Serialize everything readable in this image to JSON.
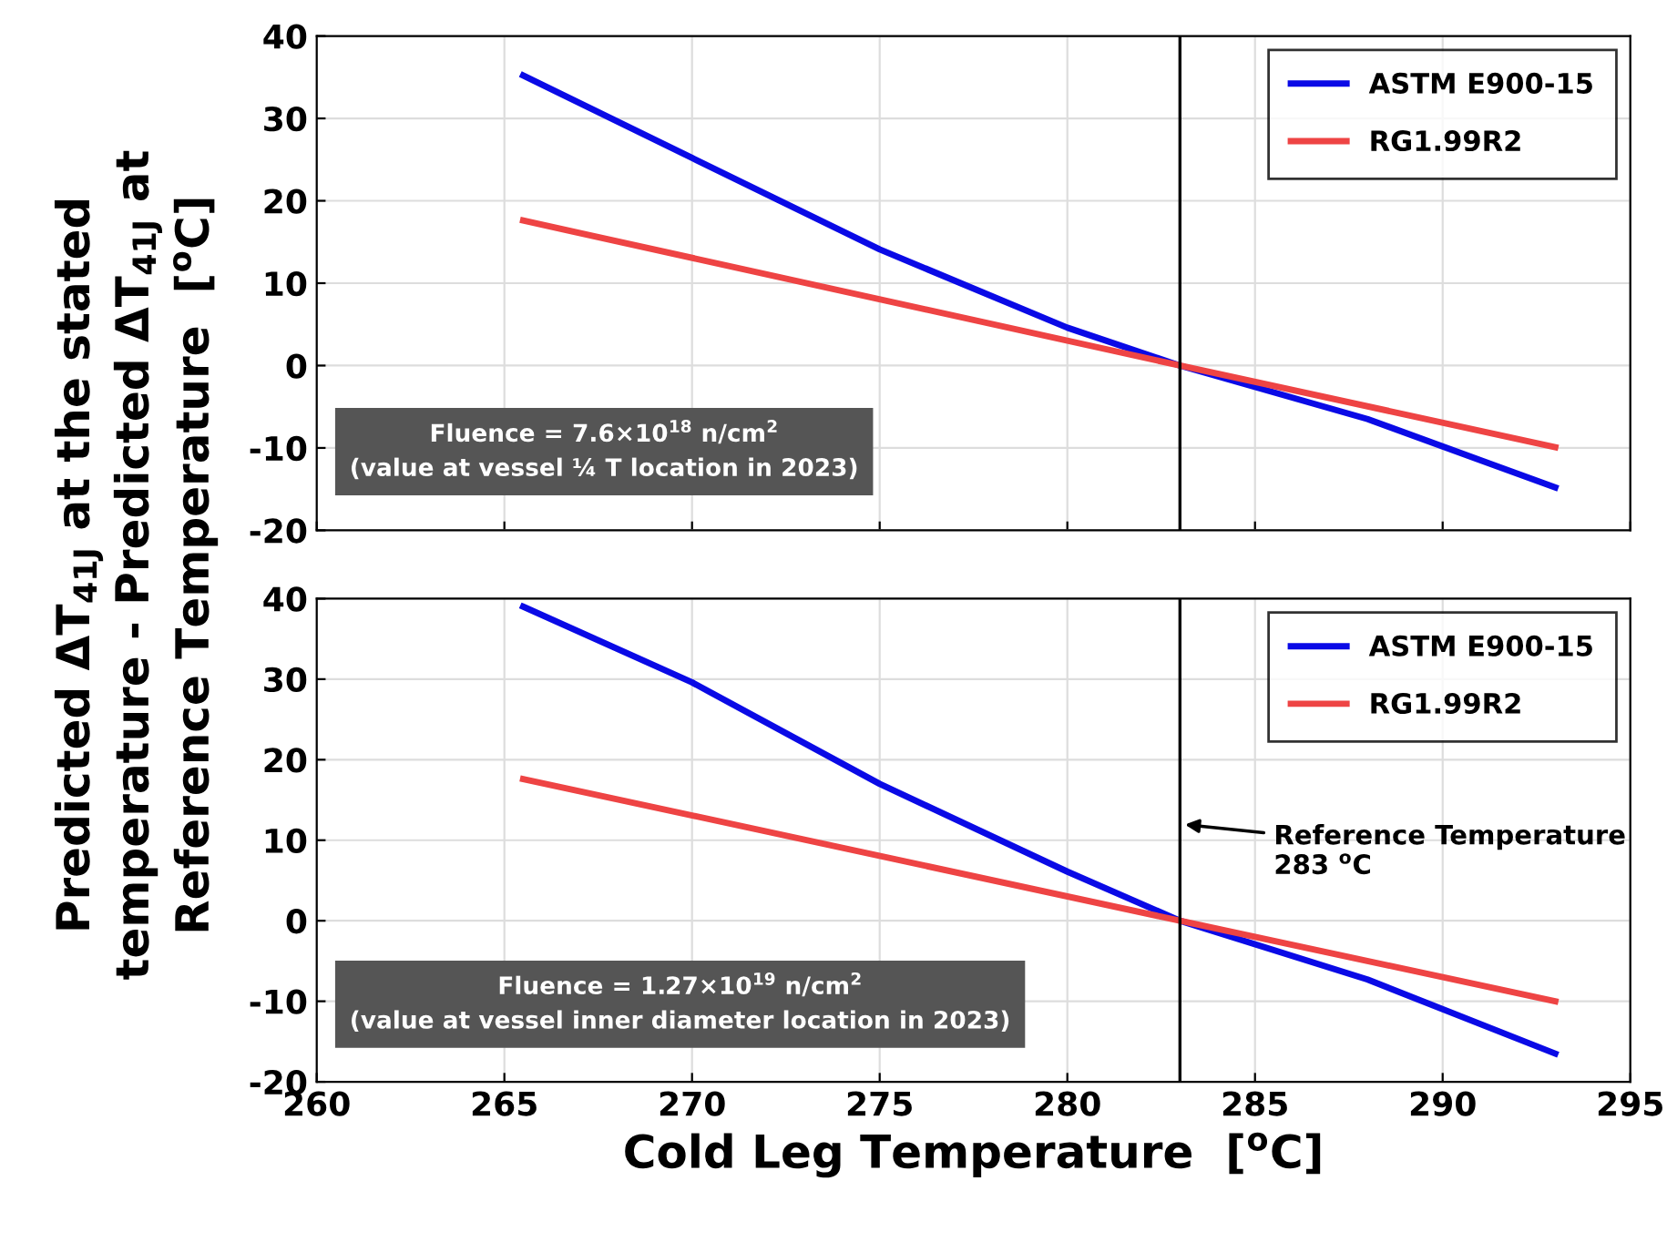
{
  "chart_data": [
    {
      "type": "line",
      "ylabel": "Predicted ΔT$_{41J}$ at the stated\ntemperature - Predicted ΔT$_{41J}$ at\nReference Temperature  [$^{o}$C]",
      "x": [
        265.5,
        270,
        275,
        280,
        283,
        288,
        293
      ],
      "series": [
        {
          "name": "ASTM E900-15",
          "color": "#0a0ae6",
          "values": [
            35.2,
            25.2,
            14.1,
            4.6,
            0,
            -6.5,
            -14.8
          ]
        },
        {
          "name": "RG1.99R2",
          "color": "#ee4444",
          "values": [
            17.6,
            null,
            null,
            null,
            0,
            null,
            -9.9
          ]
        }
      ],
      "xlim": [
        260,
        295
      ],
      "xticks": [
        260,
        265,
        270,
        275,
        280,
        285,
        290,
        295
      ],
      "ylim": [
        -20,
        40
      ],
      "yticks": [
        -20,
        -10,
        0,
        10,
        20,
        30,
        40
      ],
      "grid": true,
      "legend": "top right",
      "tick_labels": "y",
      "ref_lines": [
        {
          "axis": "x",
          "value": 283,
          "color": "#000000"
        }
      ],
      "annotations": [
        "Fluence = 7.6×10$^{18}$ n/cm$^{2}$\n(value at vessel ¼ T location in 2023)"
      ]
    },
    {
      "type": "line",
      "xlabel": "Cold Leg Temperature  [$^{o}$C]",
      "x": [
        265.5,
        270,
        275,
        280,
        283,
        288,
        293
      ],
      "series": [
        {
          "name": "ASTM E900-15",
          "color": "#0a0ae6",
          "values": [
            39.0,
            29.6,
            17.0,
            6.1,
            0,
            -7.3,
            -16.5
          ]
        },
        {
          "name": "RG1.99R2",
          "color": "#ee4444",
          "values": [
            17.6,
            null,
            null,
            null,
            0,
            null,
            -10.0
          ]
        }
      ],
      "xlim": [
        260,
        295
      ],
      "xticks": [
        260,
        265,
        270,
        275,
        280,
        285,
        290,
        295
      ],
      "ylim": [
        -20,
        40
      ],
      "yticks": [
        -20,
        -10,
        0,
        10,
        20,
        30,
        40
      ],
      "grid": true,
      "legend": "top right",
      "ref_lines": [
        {
          "axis": "x",
          "value": 283,
          "color": "#000000",
          "label": "Reference Temperature\n283 $^{o}$C"
        }
      ],
      "annotations": [
        "Fluence = 1.27×10$^{19}$ n/cm$^{2}$\n(value at vessel inner diameter location in 2023)"
      ]
    }
  ]
}
